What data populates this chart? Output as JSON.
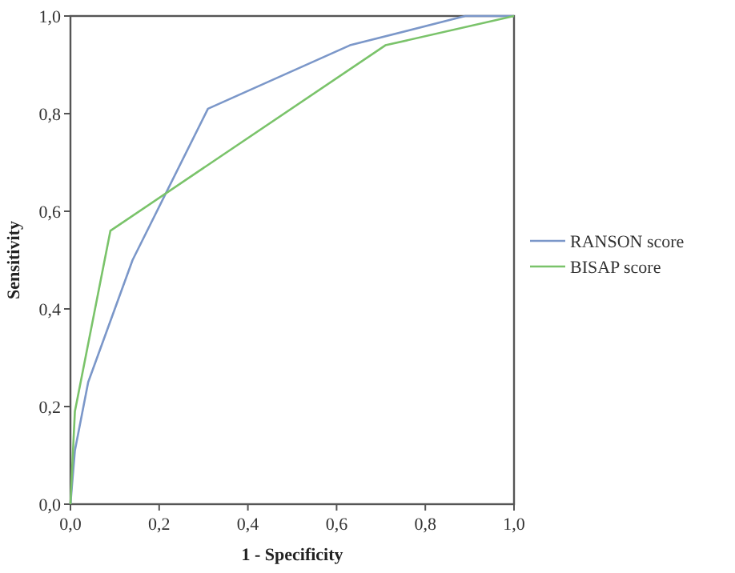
{
  "chart_data": {
    "type": "line",
    "xlabel": "1 - Specificity",
    "ylabel": "Sensitivity",
    "xlim": [
      0,
      1
    ],
    "ylim": [
      0,
      1
    ],
    "xticks": [
      {
        "value": 0,
        "label": "0,0"
      },
      {
        "value": 0.2,
        "label": "0,2"
      },
      {
        "value": 0.4,
        "label": "0,4"
      },
      {
        "value": 0.6,
        "label": "0,6"
      },
      {
        "value": 0.8,
        "label": "0,8"
      },
      {
        "value": 1,
        "label": "1,0"
      }
    ],
    "yticks": [
      {
        "value": 0,
        "label": "0,0"
      },
      {
        "value": 0.2,
        "label": "0,2"
      },
      {
        "value": 0.4,
        "label": "0,4"
      },
      {
        "value": 0.6,
        "label": "0,6"
      },
      {
        "value": 0.8,
        "label": "0,8"
      },
      {
        "value": 1,
        "label": "1,0"
      }
    ],
    "series": [
      {
        "name": "RANSON score",
        "color": "#7b97c9",
        "x": [
          0,
          0.01,
          0.04,
          0.14,
          0.31,
          0.63,
          0.89,
          1
        ],
        "values": [
          0,
          0.11,
          0.25,
          0.5,
          0.81,
          0.94,
          1,
          1
        ]
      },
      {
        "name": "BISAP score",
        "color": "#7ac36a",
        "x": [
          0,
          0.01,
          0.09,
          0.71,
          1
        ],
        "values": [
          0,
          0.19,
          0.56,
          0.94,
          1
        ]
      }
    ],
    "legend": "right",
    "grid": false,
    "marker": "none",
    "line_style": "solid"
  }
}
